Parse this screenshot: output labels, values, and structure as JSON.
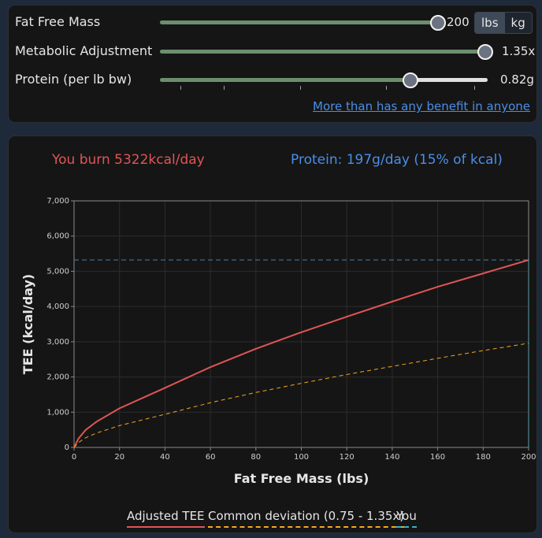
{
  "controls": {
    "fat_free_mass": {
      "label": "Fat Free Mass",
      "value": "200",
      "fraction": 1.0
    },
    "units": {
      "lbs": "lbs",
      "kg": "kg",
      "selected": "lbs"
    },
    "metabolic": {
      "label": "Metabolic Adjustment",
      "value": "1.35x",
      "fraction": 1.0
    },
    "protein": {
      "label": "Protein (per lb bw)",
      "value": "0.82g",
      "fraction": 0.763
    },
    "link_text": "More than has any benefit in anyone"
  },
  "summary": {
    "burn": "You burn 5322kcal/day",
    "protein": "Protein: 197g/day (15% of kcal)"
  },
  "legend": {
    "tee": "Adjusted TEE",
    "deviation": "Common deviation (0.75 - 1.35x)",
    "you": "You"
  },
  "chart_data": {
    "type": "line",
    "xlabel": "Fat Free Mass (lbs)",
    "ylabel": "TEE (kcal/day)",
    "xlim": [
      0,
      200
    ],
    "ylim": [
      0,
      7000
    ],
    "x_ticks": [
      "0",
      "20",
      "40",
      "60",
      "80",
      "100",
      "120",
      "140",
      "160",
      "180",
      "200"
    ],
    "y_ticks": [
      "0",
      "1,000",
      "2,000",
      "3,000",
      "4,000",
      "5,000",
      "6,000",
      "7,000"
    ],
    "grid": true,
    "series": [
      {
        "name": "Adjusted TEE",
        "color": "#e05555",
        "style": "solid",
        "x": [
          0,
          2,
          5,
          10,
          20,
          40,
          60,
          80,
          100,
          120,
          140,
          160,
          180,
          200
        ],
        "y": [
          0,
          255,
          490,
          735,
          1110,
          1690,
          2280,
          2800,
          3270,
          3710,
          4140,
          4560,
          4940,
          5322
        ]
      },
      {
        "name": "Common deviation (0.75 - 1.35x)",
        "color": "#f2a81d",
        "style": "dashed",
        "x": [
          0,
          2,
          5,
          10,
          20,
          40,
          60,
          80,
          100,
          120,
          140,
          160,
          180,
          200
        ],
        "y": [
          0,
          140,
          270,
          410,
          620,
          940,
          1270,
          1560,
          1820,
          2070,
          2300,
          2530,
          2750,
          2957
        ]
      },
      {
        "name": "You",
        "color": "#3ab0c0",
        "style": "dashed",
        "x": [
          200,
          200
        ],
        "y": [
          0,
          5322
        ]
      }
    ],
    "reference_line": {
      "y": 5322,
      "color": "#4a7fa8",
      "style": "dashed"
    }
  }
}
